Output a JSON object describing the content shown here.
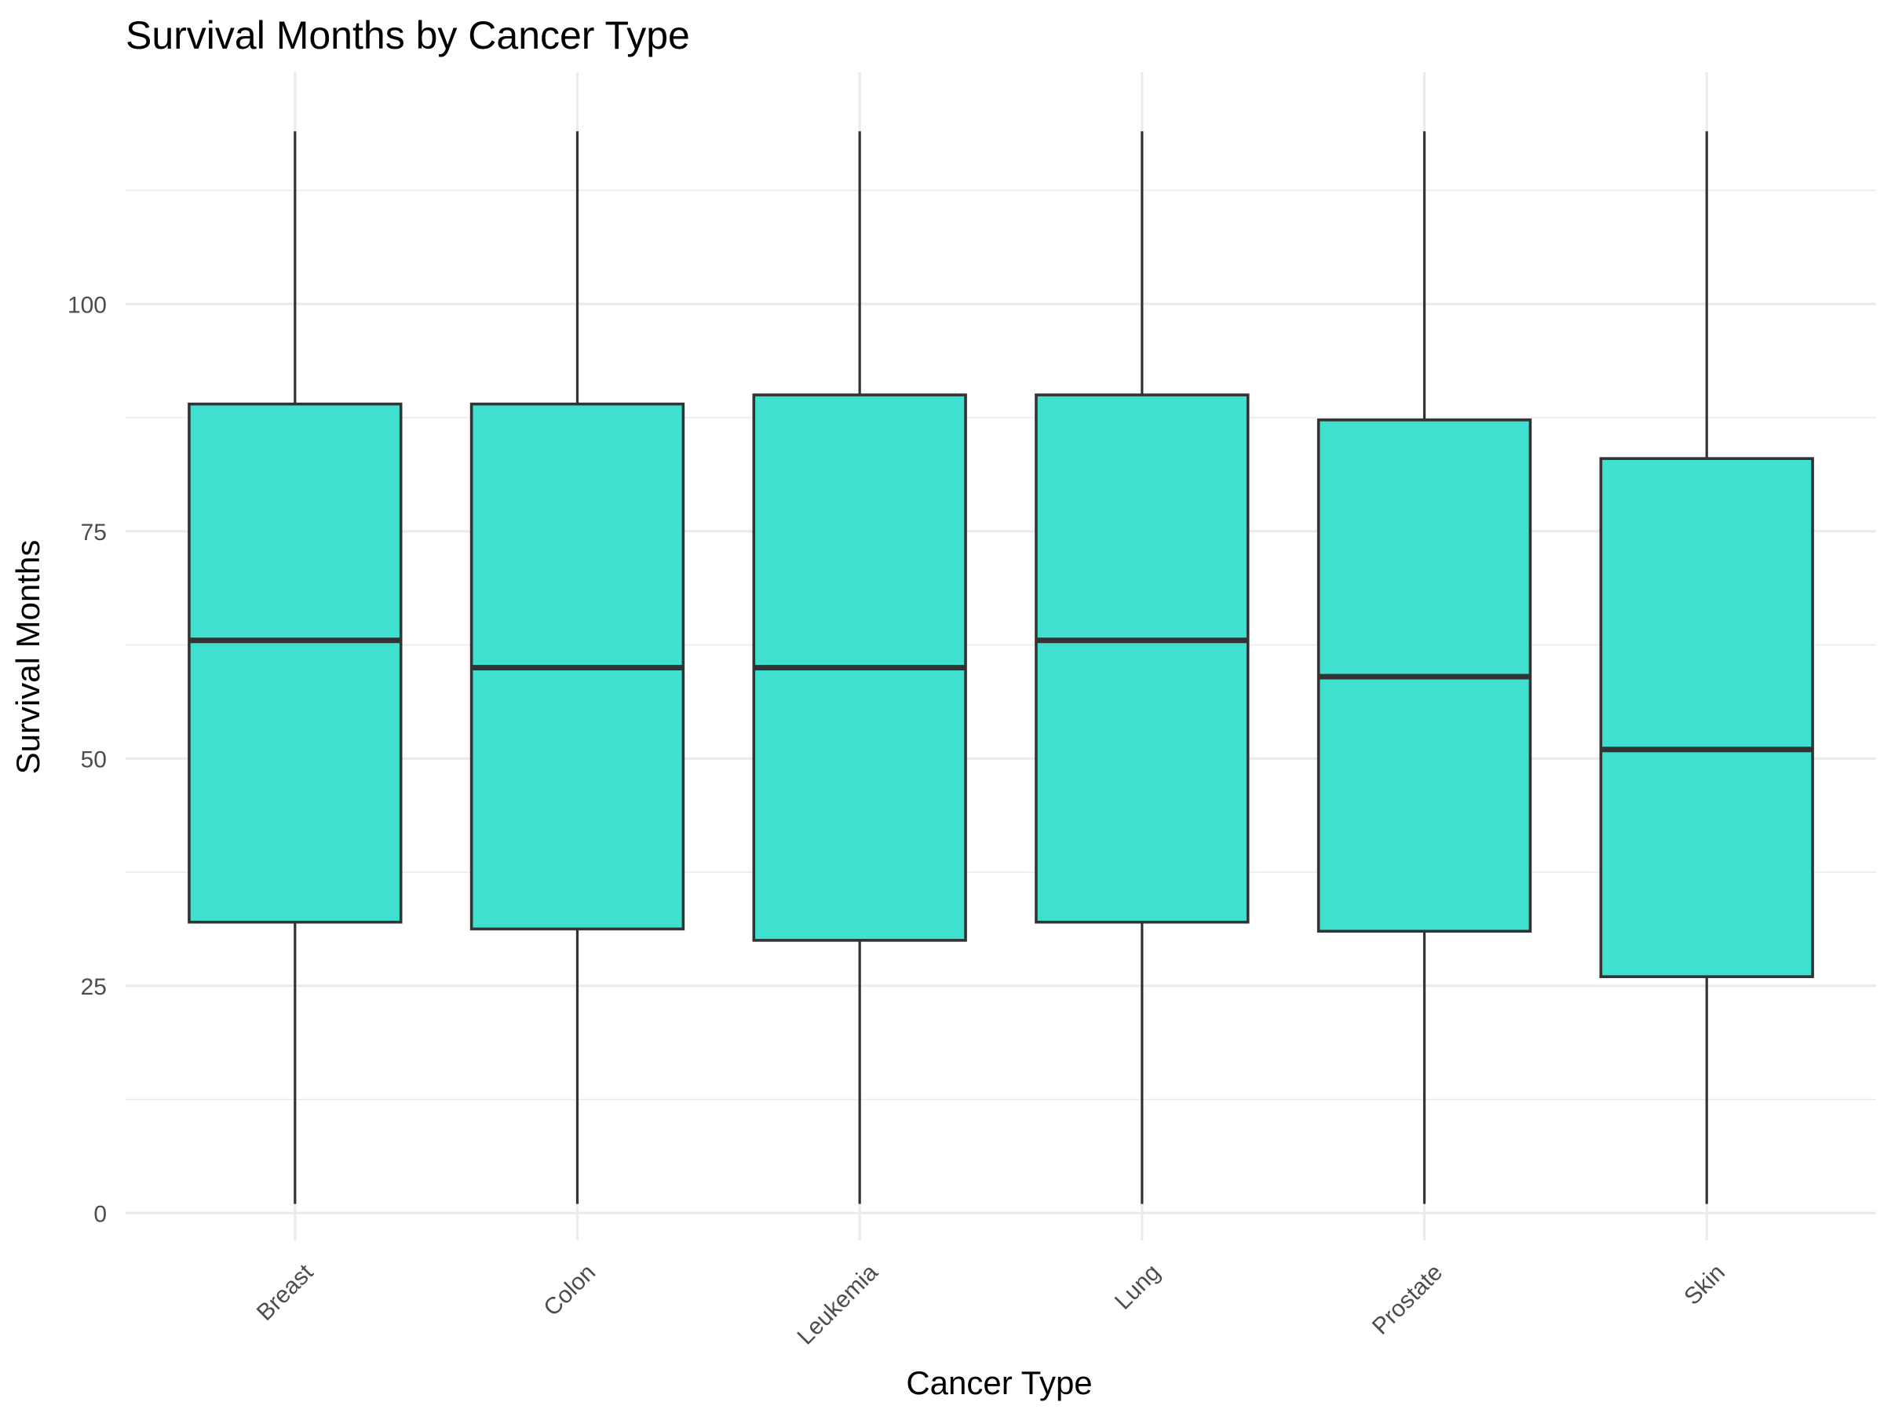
{
  "chart_data": {
    "type": "box",
    "title": "Survival Months by Cancer Type",
    "xlabel": "Cancer Type",
    "ylabel": "Survival Months",
    "categories": [
      "Breast",
      "Colon",
      "Leukemia",
      "Lung",
      "Prostate",
      "Skin"
    ],
    "boxes": [
      {
        "category": "Breast",
        "min": 1,
        "q1": 32,
        "median": 63,
        "q3": 89,
        "max": 119
      },
      {
        "category": "Colon",
        "min": 1,
        "q1": 31.25,
        "median": 60,
        "q3": 89,
        "max": 119
      },
      {
        "category": "Leukemia",
        "min": 1,
        "q1": 30,
        "median": 60,
        "q3": 90,
        "max": 119
      },
      {
        "category": "Lung",
        "min": 1,
        "q1": 32,
        "median": 63,
        "q3": 90,
        "max": 119
      },
      {
        "category": "Prostate",
        "min": 1,
        "q1": 31,
        "median": 59,
        "q3": 87.25,
        "max": 119
      },
      {
        "category": "Skin",
        "min": 1,
        "q1": 26,
        "median": 51,
        "q3": 83,
        "max": 119
      }
    ],
    "ylim": [
      -3,
      125.5
    ],
    "yticks": [
      0,
      25,
      50,
      75,
      100
    ],
    "grid": true,
    "colors": {
      "box_fill": "#40E0D0",
      "box_outline": "#333333",
      "grid": "#EBEBEB"
    }
  }
}
